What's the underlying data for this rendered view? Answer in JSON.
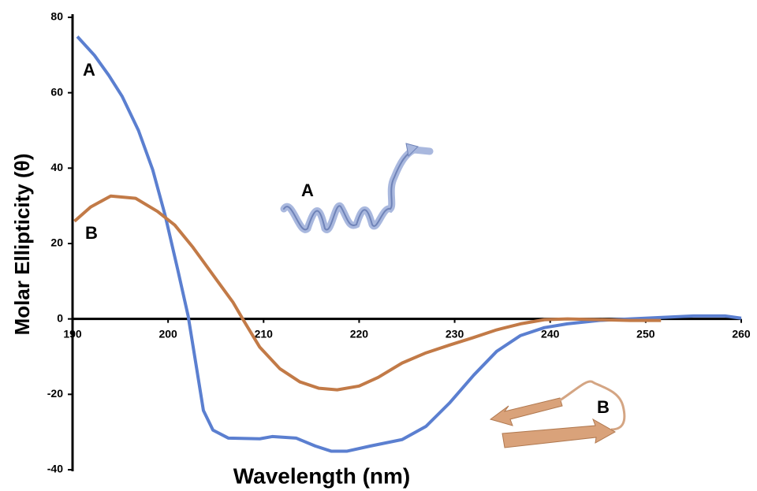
{
  "chart_data": {
    "type": "line",
    "x_label": "Wavelength (nm)",
    "y_label": "Molar Ellipticity (θ)",
    "xlim": [
      190,
      260
    ],
    "xticks": [
      190,
      200,
      210,
      220,
      230,
      240,
      250,
      260
    ],
    "ylim": [
      -40,
      80
    ],
    "yticks": [
      -40,
      -20,
      0,
      20,
      40,
      60,
      80
    ],
    "grid": false,
    "series": [
      {
        "name": "A",
        "color": "#5b7fd0",
        "x": [
          190.5,
          192.3,
          193.8,
          195.2,
          196.9,
          198.4,
          199.7,
          201.0,
          202.1,
          202.9,
          203.7,
          204.7,
          206.3,
          209.6,
          210.9,
          213.4,
          215.4,
          217.1,
          218.7,
          221.2,
          224.5,
          227.0,
          229.5,
          232.0,
          234.4,
          236.9,
          239.4,
          241.8,
          245.1,
          248.4,
          251.7,
          255.0,
          258.3,
          260
        ],
        "values": [
          74.9,
          69.9,
          64.6,
          59.0,
          50.0,
          39.5,
          27.4,
          13.2,
          0.8,
          -11.7,
          -24.3,
          -29.5,
          -31.6,
          -31.8,
          -31.2,
          -31.6,
          -33.7,
          -35.1,
          -35.1,
          -33.7,
          -32.0,
          -28.5,
          -22.2,
          -14.9,
          -8.6,
          -4.4,
          -2.3,
          -1.3,
          -0.4,
          0,
          0.4,
          0.8,
          0.8,
          0.2
        ]
      },
      {
        "name": "B",
        "color": "#c27a47",
        "x": [
          190.2,
          191.9,
          194.0,
          196.6,
          198.9,
          200.7,
          202.6,
          205.1,
          206.8,
          208.0,
          209.6,
          211.7,
          213.8,
          215.8,
          217.7,
          220.0,
          222.0,
          224.5,
          227.0,
          229.5,
          231.9,
          234.4,
          236.9,
          239.4,
          241.8,
          245.1,
          248.4,
          251.6
        ],
        "values": [
          25.9,
          29.7,
          32.6,
          32.0,
          28.5,
          24.9,
          19.0,
          10.3,
          4.4,
          -0.8,
          -7.5,
          -13.2,
          -16.7,
          -18.4,
          -18.8,
          -17.8,
          -15.5,
          -11.7,
          -9.0,
          -6.9,
          -5.0,
          -2.9,
          -1.3,
          -0.2,
          0,
          -0.2,
          -0.4,
          -0.4
        ]
      }
    ]
  }
}
